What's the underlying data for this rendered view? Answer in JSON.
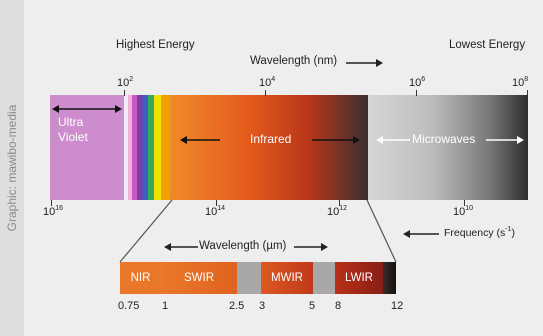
{
  "credit": "Graphic: mawibo-media",
  "header": {
    "highest_energy": "Highest Energy",
    "lowest_energy": "Lowest Energy",
    "wavelength_nm": "Wavelength (nm)"
  },
  "wavelength_ticks": [
    {
      "base": "10",
      "exp": "2"
    },
    {
      "base": "10",
      "exp": "4"
    },
    {
      "base": "10",
      "exp": "6"
    },
    {
      "base": "10",
      "exp": "8"
    }
  ],
  "bands": {
    "ultraviolet_line1": "Ultra",
    "ultraviolet_line2": "Violet",
    "infrared": "Infrared",
    "microwaves": "Microwaves"
  },
  "frequency_ticks": [
    {
      "base": "10",
      "exp": "16"
    },
    {
      "base": "10",
      "exp": "14"
    },
    {
      "base": "10",
      "exp": "12"
    },
    {
      "base": "10",
      "exp": "10"
    }
  ],
  "frequency_label": {
    "text": "Frequency (s",
    "exp": "-1",
    "close": ")"
  },
  "detail": {
    "wavelength_um": "Wavelength (µm)",
    "segments": [
      "NIR",
      "SWIR",
      "MWIR",
      "LWIR"
    ],
    "ticks": [
      "0.75",
      "1",
      "2.5",
      "3",
      "5",
      "8",
      "12"
    ]
  },
  "colors": {
    "background": "#eeeeee",
    "ultraviolet": "#cc8ccd",
    "infrared_start": "#f08a2a",
    "infrared_end": "#3a3030",
    "microwave_start": "#d6d6d6",
    "microwave_end": "#2e2e2e"
  }
}
